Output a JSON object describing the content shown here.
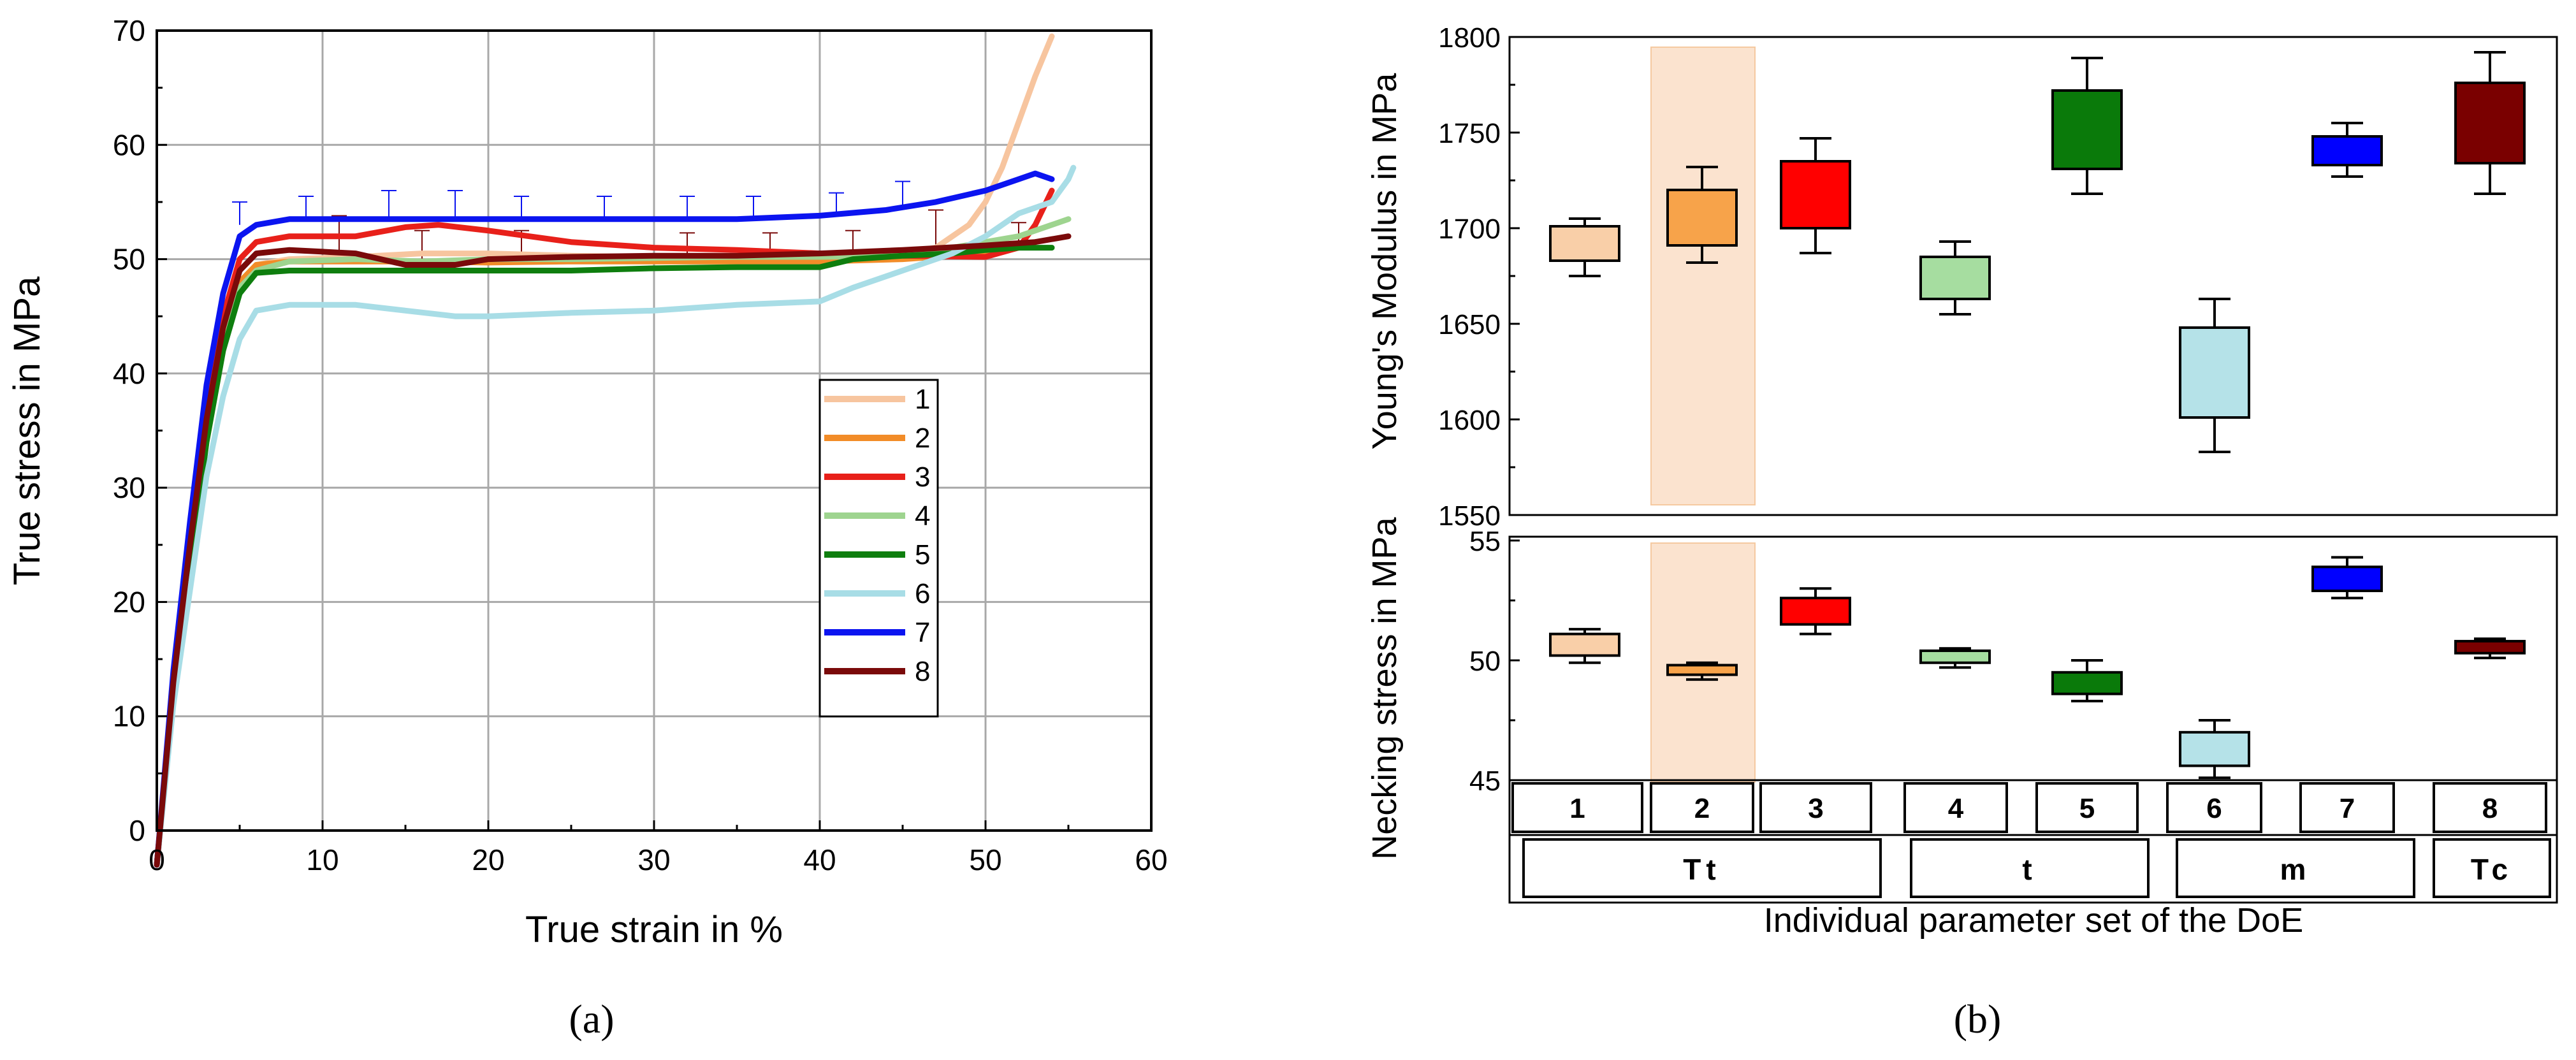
{
  "panel_a_label": "(a)",
  "panel_b_label": "(b)",
  "chart_data": [
    {
      "type": "line",
      "panel": "a",
      "xlabel": "True strain in %",
      "ylabel": "True stress in MPa",
      "xlim": [
        0,
        60
      ],
      "ylim": [
        0,
        70
      ],
      "xticks": [
        0,
        10,
        20,
        30,
        40,
        50,
        60
      ],
      "yticks": [
        0,
        10,
        20,
        30,
        40,
        50,
        60,
        70
      ],
      "grid": true,
      "legend_position": "center-right",
      "series": [
        {
          "name": "1",
          "color": "#F7C59F",
          "points": [
            [
              0,
              -3
            ],
            [
              1,
              12
            ],
            [
              2,
              24
            ],
            [
              3,
              35
            ],
            [
              4,
              43
            ],
            [
              5,
              48
            ],
            [
              6,
              49.5
            ],
            [
              8,
              50
            ],
            [
              12,
              50.2
            ],
            [
              16,
              50.5
            ],
            [
              20,
              50.5
            ],
            [
              25,
              50.3
            ],
            [
              30,
              50.2
            ],
            [
              35,
              50
            ],
            [
              40,
              50
            ],
            [
              44,
              50.3
            ],
            [
              47,
              51
            ],
            [
              49,
              53
            ],
            [
              50,
              55
            ],
            [
              51,
              58
            ],
            [
              52,
              62
            ],
            [
              53,
              66
            ],
            [
              54,
              69.5
            ]
          ]
        },
        {
          "name": "2",
          "color": "#F28C28",
          "points": [
            [
              0,
              -3
            ],
            [
              1,
              12
            ],
            [
              2,
              24
            ],
            [
              3,
              35
            ],
            [
              4,
              43
            ],
            [
              5,
              48
            ],
            [
              6,
              49.5
            ],
            [
              8,
              49.8
            ],
            [
              12,
              49.8
            ],
            [
              16,
              49.8
            ],
            [
              20,
              49.7
            ],
            [
              25,
              49.8
            ],
            [
              30,
              49.8
            ],
            [
              35,
              49.8
            ],
            [
              40,
              49.8
            ],
            [
              45,
              50
            ],
            [
              50,
              50.5
            ],
            [
              52,
              51
            ],
            [
              53,
              51.5
            ]
          ]
        },
        {
          "name": "3",
          "color": "#E8201A",
          "points": [
            [
              0,
              -3
            ],
            [
              1,
              13
            ],
            [
              2,
              26
            ],
            [
              3,
              37
            ],
            [
              4,
              45
            ],
            [
              5,
              50
            ],
            [
              6,
              51.5
            ],
            [
              8,
              52
            ],
            [
              12,
              52
            ],
            [
              15,
              52.8
            ],
            [
              17,
              53
            ],
            [
              20,
              52.5
            ],
            [
              25,
              51.5
            ],
            [
              30,
              51
            ],
            [
              35,
              50.8
            ],
            [
              40,
              50.5
            ],
            [
              45,
              50.3
            ],
            [
              50,
              50.2
            ],
            [
              52,
              51
            ],
            [
              53,
              53
            ],
            [
              54,
              56
            ]
          ]
        },
        {
          "name": "4",
          "color": "#9ED48F",
          "points": [
            [
              0,
              -3
            ],
            [
              1,
              12
            ],
            [
              2,
              23
            ],
            [
              3,
              34
            ],
            [
              4,
              42
            ],
            [
              5,
              47.5
            ],
            [
              6,
              49
            ],
            [
              8,
              49.8
            ],
            [
              12,
              50
            ],
            [
              16,
              49.8
            ],
            [
              20,
              50
            ],
            [
              25,
              50
            ],
            [
              30,
              50.1
            ],
            [
              35,
              50.2
            ],
            [
              40,
              50.2
            ],
            [
              45,
              50.3
            ],
            [
              48,
              51
            ],
            [
              50,
              51.5
            ],
            [
              52,
              52
            ],
            [
              54,
              53
            ],
            [
              55,
              53.5
            ]
          ]
        },
        {
          "name": "5",
          "color": "#0E7E0E",
          "points": [
            [
              0,
              -3
            ],
            [
              1,
              12
            ],
            [
              2,
              23
            ],
            [
              3,
              34
            ],
            [
              4,
              42
            ],
            [
              5,
              47
            ],
            [
              6,
              48.8
            ],
            [
              8,
              49
            ],
            [
              12,
              49
            ],
            [
              16,
              49
            ],
            [
              20,
              49
            ],
            [
              25,
              49
            ],
            [
              30,
              49.2
            ],
            [
              35,
              49.3
            ],
            [
              40,
              49.3
            ],
            [
              42,
              50
            ],
            [
              45,
              50.3
            ],
            [
              48,
              50.5
            ],
            [
              50,
              50.8
            ],
            [
              52,
              51
            ],
            [
              54,
              51
            ]
          ]
        },
        {
          "name": "6",
          "color": "#A8DDE6",
          "points": [
            [
              0,
              -3
            ],
            [
              1,
              11
            ],
            [
              2,
              21
            ],
            [
              3,
              31
            ],
            [
              4,
              38
            ],
            [
              5,
              43
            ],
            [
              6,
              45.5
            ],
            [
              8,
              46
            ],
            [
              12,
              46
            ],
            [
              15,
              45.5
            ],
            [
              18,
              45
            ],
            [
              20,
              45
            ],
            [
              25,
              45.3
            ],
            [
              30,
              45.5
            ],
            [
              35,
              46
            ],
            [
              40,
              46.3
            ],
            [
              42,
              47.5
            ],
            [
              45,
              49
            ],
            [
              48,
              50.5
            ],
            [
              50,
              52
            ],
            [
              52,
              54
            ],
            [
              54,
              55
            ],
            [
              55,
              57
            ],
            [
              55.3,
              58
            ]
          ]
        },
        {
          "name": "7",
          "color": "#0B14F0",
          "points": [
            [
              0,
              -3
            ],
            [
              1,
              14
            ],
            [
              2,
              27
            ],
            [
              3,
              39
            ],
            [
              4,
              47
            ],
            [
              5,
              52
            ],
            [
              6,
              53
            ],
            [
              8,
              53.5
            ],
            [
              12,
              53.5
            ],
            [
              16,
              53.5
            ],
            [
              20,
              53.5
            ],
            [
              25,
              53.5
            ],
            [
              30,
              53.5
            ],
            [
              35,
              53.5
            ],
            [
              40,
              53.8
            ],
            [
              44,
              54.3
            ],
            [
              47,
              55
            ],
            [
              50,
              56
            ],
            [
              52,
              57
            ],
            [
              53,
              57.5
            ],
            [
              54,
              57
            ]
          ]
        },
        {
          "name": "8",
          "color": "#7A0A0A",
          "points": [
            [
              0,
              -3
            ],
            [
              1,
              13
            ],
            [
              2,
              25
            ],
            [
              3,
              36
            ],
            [
              4,
              44
            ],
            [
              5,
              49
            ],
            [
              6,
              50.5
            ],
            [
              8,
              50.8
            ],
            [
              12,
              50.5
            ],
            [
              15,
              49.5
            ],
            [
              18,
              49.5
            ],
            [
              20,
              50
            ],
            [
              25,
              50.2
            ],
            [
              30,
              50.3
            ],
            [
              35,
              50.3
            ],
            [
              40,
              50.5
            ],
            [
              45,
              50.8
            ],
            [
              50,
              51.2
            ],
            [
              53,
              51.5
            ],
            [
              55,
              52
            ]
          ]
        }
      ],
      "error_bars": [
        {
          "series": "7",
          "x": [
            5,
            9,
            14,
            18,
            22,
            27,
            32,
            36,
            41,
            45
          ],
          "y": [
            53,
            53.5,
            53.5,
            53.5,
            53.5,
            53.5,
            53.5,
            53.5,
            53.8,
            54.3
          ],
          "err": [
            2,
            2,
            2.5,
            2.5,
            2,
            2,
            2,
            2,
            2,
            2.5
          ]
        },
        {
          "series": "8",
          "x": [
            11,
            16,
            22,
            32,
            37,
            42,
            47,
            52
          ],
          "y": [
            50.8,
            49.5,
            50,
            50.3,
            50.3,
            50.5,
            50.8,
            51.2
          ],
          "err": [
            3,
            3,
            2.5,
            2,
            2,
            2,
            3.5,
            2
          ]
        }
      ]
    },
    {
      "type": "box",
      "panel": "b-top",
      "ylabel": "Young's Modulus in MPa",
      "ylim": [
        1550,
        1800
      ],
      "yticks": [
        1550,
        1600,
        1650,
        1700,
        1750,
        1800
      ],
      "categories": [
        "1",
        "2",
        "3",
        "4",
        "5",
        "6",
        "7",
        "8"
      ],
      "colors": [
        "#F9CFA8",
        "#F7A34A",
        "#FF0000",
        "#A6DDA0",
        "#0A7A0A",
        "#B5E2E8",
        "#0000FF",
        "#7A0000"
      ],
      "boxes": [
        {
          "min": 1675,
          "q1": 1683,
          "q3": 1701,
          "max": 1705
        },
        {
          "min": 1682,
          "q1": 1691,
          "q3": 1720,
          "max": 1732
        },
        {
          "min": 1687,
          "q1": 1700,
          "q3": 1735,
          "max": 1747
        },
        {
          "min": 1655,
          "q1": 1663,
          "q3": 1685,
          "max": 1693
        },
        {
          "min": 1718,
          "q1": 1731,
          "q3": 1772,
          "max": 1789
        },
        {
          "min": 1583,
          "q1": 1601,
          "q3": 1648,
          "max": 1663
        },
        {
          "min": 1727,
          "q1": 1733,
          "q3": 1748,
          "max": 1755
        },
        {
          "min": 1718,
          "q1": 1734,
          "q3": 1776,
          "max": 1792
        }
      ],
      "highlight_category": "2"
    },
    {
      "type": "box",
      "panel": "b-bottom",
      "ylabel": "Necking stress in MPa",
      "ylim": [
        45,
        55
      ],
      "yticks": [
        45,
        50,
        55
      ],
      "categories": [
        "1",
        "2",
        "3",
        "4",
        "5",
        "6",
        "7",
        "8"
      ],
      "colors": [
        "#F9CFA8",
        "#F7A34A",
        "#FF0000",
        "#A6DDA0",
        "#0A7A0A",
        "#B5E2E8",
        "#0000FF",
        "#7A0000"
      ],
      "boxes": [
        {
          "min": 49.9,
          "q1": 50.2,
          "q3": 51.1,
          "max": 51.3
        },
        {
          "min": 49.2,
          "q1": 49.4,
          "q3": 49.8,
          "max": 49.9
        },
        {
          "min": 51.1,
          "q1": 51.5,
          "q3": 52.6,
          "max": 53
        },
        {
          "min": 49.7,
          "q1": 49.9,
          "q3": 50.4,
          "max": 50.5
        },
        {
          "min": 48.3,
          "q1": 48.6,
          "q3": 49.5,
          "max": 50
        },
        {
          "min": 45.1,
          "q1": 45.6,
          "q3": 47,
          "max": 47.5
        },
        {
          "min": 52.6,
          "q1": 52.9,
          "q3": 53.9,
          "max": 54.3
        },
        {
          "min": 50.1,
          "q1": 50.3,
          "q3": 50.8,
          "max": 50.9
        }
      ],
      "highlight_category": "2"
    }
  ],
  "doe_table": {
    "row1": [
      "1",
      "2",
      "3",
      "4",
      "5",
      "6",
      "7",
      "8"
    ],
    "row2": [
      "Tt",
      "t",
      "m",
      "Tc"
    ],
    "xlabel": "Individual parameter set of the DoE"
  }
}
